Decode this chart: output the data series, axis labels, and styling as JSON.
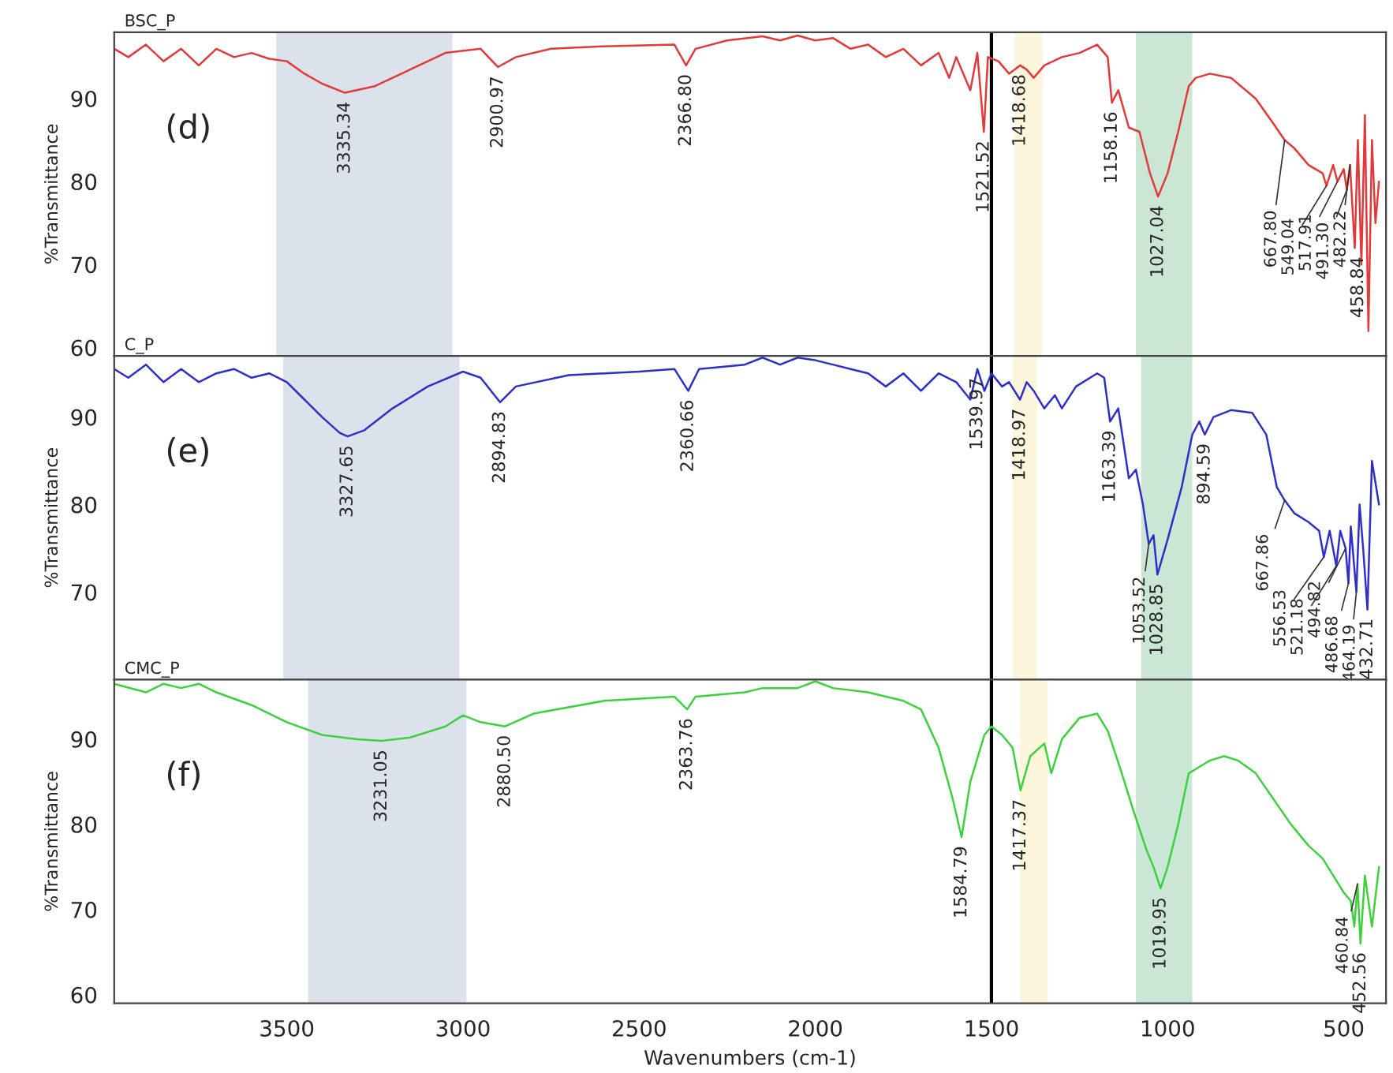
{
  "chart_data": [
    {
      "type": "line",
      "xlim": [
        3990,
        380
      ],
      "ylim": [
        59,
        98
      ],
      "yticks": [
        60,
        70,
        80,
        90
      ],
      "xticks": [
        3500,
        3000,
        2500,
        2000,
        1500,
        1000,
        500
      ],
      "tick_labels": "y",
      "ylabel": "%Transmittance",
      "grid": false,
      "legend": false,
      "annotations": [
        "(d)",
        {
          "text": "3335.34",
          "x": 3335.34,
          "y": 90.7
        },
        {
          "text": "2900.97",
          "x": 2900.97,
          "y": 93.8
        },
        {
          "text": "2366.80",
          "x": 2366.8,
          "y": 94
        },
        {
          "text": "1521.52",
          "x": 1521.52,
          "y": 86
        },
        {
          "text": "1418.68",
          "x": 1418.68,
          "y": 94
        },
        {
          "text": "1158.16",
          "x": 1158.16,
          "y": 89.5
        },
        {
          "text": "1027.04",
          "x": 1027.04,
          "y": 78.2
        },
        {
          "text": "667.80",
          "x": 667.8,
          "y": 85
        },
        {
          "text": "549.04",
          "x": 549.04,
          "y": 79.5
        },
        {
          "text": "517.91",
          "x": 517.91,
          "y": 80
        },
        {
          "text": "491.30",
          "x": 491.3,
          "y": 79
        },
        {
          "text": "482.22",
          "x": 482.22,
          "y": 82
        },
        {
          "text": "458.84",
          "x": 458.84,
          "y": 72
        }
      ],
      "ref_lines": [
        {
          "axis": "x",
          "value": 1500,
          "color": "#000000"
        }
      ],
      "bands": [
        {
          "axis": "x",
          "from": 3530,
          "to": 3030,
          "color": "#c5cfdf"
        },
        {
          "axis": "x",
          "from": 1435,
          "to": 1355,
          "color": "#fbeec4"
        },
        {
          "axis": "x",
          "from": 1090,
          "to": 930,
          "color": "#a9d6b8"
        }
      ],
      "series": [
        {
          "name": "BSC_P",
          "color": "#e03a3a",
          "x": [
            3990,
            3950,
            3900,
            3850,
            3800,
            3750,
            3700,
            3650,
            3600,
            3550,
            3500,
            3450,
            3400,
            3335.34,
            3250,
            3150,
            3050,
            2950,
            2900.97,
            2850,
            2750,
            2600,
            2400,
            2366.8,
            2340,
            2250,
            2150,
            2100,
            2050,
            2000,
            1950,
            1900,
            1850,
            1800,
            1750,
            1700,
            1650,
            1620,
            1600,
            1560,
            1540,
            1521.52,
            1510,
            1480,
            1450,
            1418.68,
            1400,
            1380,
            1350,
            1300,
            1250,
            1200,
            1170,
            1158.16,
            1140,
            1110,
            1080,
            1050,
            1027.04,
            1000,
            970,
            940,
            920,
            880,
            820,
            750,
            700,
            667.8,
            640,
            600,
            560,
            549.04,
            530,
            517.91,
            500,
            491.3,
            482.22,
            468.84,
            460,
            450,
            440,
            430,
            420,
            410,
            400
          ],
          "values": [
            96,
            95,
            96.5,
            94.5,
            96,
            94,
            96,
            95,
            95.5,
            94.8,
            94.5,
            93,
            91.8,
            90.7,
            91.5,
            93.5,
            95.5,
            96,
            93.8,
            95,
            96,
            96.3,
            96.5,
            94,
            96,
            97,
            97.5,
            97,
            97.6,
            97,
            97.3,
            96,
            96.5,
            95,
            96,
            94,
            95.5,
            92.5,
            95,
            91,
            95.5,
            86,
            95,
            94.5,
            93,
            94,
            93.5,
            92.5,
            94,
            95,
            95.5,
            96.5,
            95,
            89.5,
            91,
            86.5,
            86,
            81,
            78.2,
            81,
            86,
            91.5,
            92.5,
            93,
            92.5,
            90,
            87,
            85,
            84,
            82,
            81,
            79.5,
            82,
            80,
            81.5,
            79,
            82,
            72,
            85,
            70,
            88,
            62,
            85,
            75,
            80
          ]
        }
      ]
    },
    {
      "type": "line",
      "xlim": [
        3990,
        380
      ],
      "ylim": [
        60,
        97
      ],
      "yticks": [
        70,
        80,
        90
      ],
      "xticks": [
        3500,
        3000,
        2500,
        2000,
        1500,
        1000,
        500
      ],
      "tick_labels": "y",
      "ylabel": "%Transmittance",
      "grid": false,
      "legend": false,
      "annotations": [
        "(e)",
        {
          "text": "3327.65",
          "x": 3327.65,
          "y": 87.8
        },
        {
          "text": "2894.83",
          "x": 2894.83,
          "y": 91.7
        },
        {
          "text": "2360.66",
          "x": 2360.66,
          "y": 93
        },
        {
          "text": "1539.97",
          "x": 1539.97,
          "y": 95.5
        },
        {
          "text": "1418.97",
          "x": 1418.97,
          "y": 92
        },
        {
          "text": "1163.39",
          "x": 1163.39,
          "y": 89.5
        },
        {
          "text": "1053.52",
          "x": 1053.52,
          "y": 75.5
        },
        {
          "text": "1028.85",
          "x": 1028.85,
          "y": 72
        },
        {
          "text": "894.59",
          "x": 894.59,
          "y": 88
        },
        {
          "text": "667.86",
          "x": 667.86,
          "y": 80.5
        },
        {
          "text": "556.53",
          "x": 556.53,
          "y": 74
        },
        {
          "text": "521.18",
          "x": 521.18,
          "y": 73
        },
        {
          "text": "494.82",
          "x": 494.82,
          "y": 75
        },
        {
          "text": "486.68",
          "x": 486.68,
          "y": 71
        },
        {
          "text": "464.19",
          "x": 464.19,
          "y": 70
        },
        {
          "text": "432.71",
          "x": 432.71,
          "y": 68
        }
      ],
      "ref_lines": [
        {
          "axis": "x",
          "value": 1500,
          "color": "#000000"
        }
      ],
      "bands": [
        {
          "axis": "x",
          "from": 3510,
          "to": 3010,
          "color": "#c5cfdf"
        },
        {
          "axis": "x",
          "from": 1440,
          "to": 1370,
          "color": "#fbeec4"
        },
        {
          "axis": "x",
          "from": 1075,
          "to": 930,
          "color": "#a9d6b8"
        }
      ],
      "series": [
        {
          "name": "C_P",
          "color": "#2f2fc8",
          "x": [
            3990,
            3950,
            3900,
            3850,
            3800,
            3750,
            3700,
            3650,
            3600,
            3550,
            3500,
            3450,
            3400,
            3350,
            3327.65,
            3280,
            3200,
            3100,
            3000,
            2950,
            2894.83,
            2850,
            2700,
            2500,
            2400,
            2360.66,
            2330,
            2200,
            2150,
            2100,
            2050,
            2000,
            1950,
            1900,
            1850,
            1800,
            1750,
            1700,
            1650,
            1600,
            1560,
            1539.97,
            1520,
            1500,
            1470,
            1450,
            1418.97,
            1400,
            1380,
            1350,
            1320,
            1300,
            1260,
            1200,
            1180,
            1163.39,
            1140,
            1110,
            1090,
            1070,
            1053.52,
            1040,
            1028.85,
            1000,
            960,
            930,
            910,
            894.59,
            870,
            820,
            760,
            720,
            690,
            667.86,
            640,
            600,
            570,
            556.53,
            540,
            521.18,
            510,
            494.82,
            486.68,
            480,
            464.19,
            455,
            445,
            432.71,
            420,
            400
          ],
          "values": [
            95.5,
            94.5,
            96,
            94,
            95.5,
            94,
            95,
            95.5,
            94.5,
            95,
            94,
            92,
            90,
            88.2,
            87.8,
            88.5,
            91,
            93.5,
            95.2,
            94.5,
            91.7,
            93.5,
            94.8,
            95.2,
            95.5,
            93,
            95.5,
            96,
            96.8,
            96,
            96.8,
            96.5,
            96,
            95.5,
            95,
            93.5,
            95,
            93,
            95,
            94,
            92,
            95.5,
            93,
            95,
            93.5,
            94,
            92,
            94,
            93,
            91,
            92.5,
            91,
            93.5,
            95,
            94.5,
            89.5,
            91,
            83,
            84,
            80,
            75.5,
            76.5,
            72,
            76,
            82,
            88,
            89.5,
            88,
            90,
            90.8,
            90.5,
            88,
            82,
            80.5,
            79,
            78,
            77,
            74,
            77,
            73,
            77,
            75,
            71,
            77.5,
            70,
            80,
            75,
            68,
            85,
            80
          ]
        }
      ]
    },
    {
      "type": "line",
      "xlim": [
        3990,
        380
      ],
      "ylim": [
        59,
        97
      ],
      "yticks": [
        60,
        70,
        80,
        90
      ],
      "xticks": [
        3500,
        3000,
        2500,
        2000,
        1500,
        1000,
        500
      ],
      "xlabel": "Wavenumbers (cm-1)",
      "ylabel": "%Transmittance",
      "grid": false,
      "legend": false,
      "annotations": [
        "(f)",
        {
          "text": "3231.05",
          "x": 3231.05,
          "y": 89.8
        },
        {
          "text": "2880.50",
          "x": 2880.5,
          "y": 91.5
        },
        {
          "text": "2363.76",
          "x": 2363.76,
          "y": 93.5
        },
        {
          "text": "1584.79",
          "x": 1584.79,
          "y": 78.5
        },
        {
          "text": "1417.37",
          "x": 1417.37,
          "y": 84
        },
        {
          "text": "1019.95",
          "x": 1019.95,
          "y": 72.5
        },
        {
          "text": "452.56",
          "x": 452.56,
          "y": 66
        },
        {
          "text": "460.84",
          "x": 460.84,
          "y": 73
        }
      ],
      "ref_lines": [
        {
          "axis": "x",
          "value": 1500,
          "color": "#000000"
        }
      ],
      "bands": [
        {
          "axis": "x",
          "from": 3440,
          "to": 2990,
          "color": "#c5cfdf"
        },
        {
          "axis": "x",
          "from": 1420,
          "to": 1340,
          "color": "#fbeec4"
        },
        {
          "axis": "x",
          "from": 1090,
          "to": 930,
          "color": "#a9d6b8"
        }
      ],
      "series": [
        {
          "name": "CMC_P",
          "color": "#3dd13d",
          "x": [
            3990,
            3900,
            3850,
            3800,
            3750,
            3700,
            3600,
            3500,
            3400,
            3300,
            3231.05,
            3150,
            3050,
            3000,
            2950,
            2880.5,
            2800,
            2600,
            2400,
            2363.76,
            2340,
            2200,
            2150,
            2050,
            2000,
            1950,
            1850,
            1750,
            1700,
            1650,
            1610,
            1584.79,
            1560,
            1520,
            1500,
            1470,
            1440,
            1417.37,
            1390,
            1350,
            1330,
            1300,
            1250,
            1200,
            1170,
            1130,
            1100,
            1060,
            1040,
            1019.95,
            1000,
            970,
            940,
            920,
            880,
            840,
            800,
            750,
            700,
            650,
            600,
            560,
            530,
            500,
            480,
            470,
            460.84,
            452.56,
            440,
            420,
            400
          ],
          "values": [
            96.5,
            95.5,
            96.5,
            96,
            96.5,
            95.5,
            94,
            92,
            90.5,
            90,
            89.8,
            90.2,
            91.5,
            92.8,
            92,
            91.5,
            93,
            94.5,
            95,
            93.5,
            95,
            95.5,
            96,
            96,
            96.8,
            96,
            95.5,
            94.5,
            93.5,
            89,
            83,
            78.5,
            85,
            90.5,
            91.5,
            90.5,
            89,
            84,
            88,
            89.5,
            86,
            90,
            92.5,
            93,
            91,
            86,
            82,
            77,
            75,
            72.5,
            75,
            80,
            86,
            86.5,
            87.5,
            88,
            87.5,
            86,
            83,
            80,
            77.5,
            76,
            74,
            72,
            71,
            68,
            73,
            66,
            74,
            68,
            75
          ]
        }
      ]
    }
  ]
}
